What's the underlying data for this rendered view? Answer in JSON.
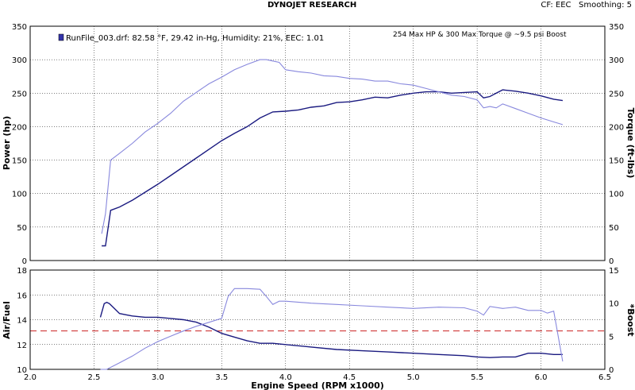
{
  "header": {
    "center_title": "DYNOJET RESEARCH",
    "right_info": "CF: EEC   Smoothing: 5"
  },
  "chart_data": [
    {
      "type": "line",
      "panel": "power-torque",
      "annotation": "254 Max HP & 300 Max Torque @ ~9.5 psi Boost",
      "legend": "RunFile_003.drf: 82.58 °F, 29.42 in-Hg, Humidity: 21%, EEC: 1.01",
      "ylabel": "Power (hp)",
      "y2label": "Torque (ft-lbs)",
      "xlim": [
        2.0,
        6.5
      ],
      "ylim": [
        0,
        350
      ],
      "y2lim": [
        0,
        350
      ],
      "x_ticks": [
        "2.0",
        "2.5",
        "3.0",
        "3.5",
        "4.0",
        "4.5",
        "5.0",
        "5.5",
        "6.0",
        "6.5"
      ],
      "y_ticks": [
        "0",
        "50",
        "100",
        "150",
        "200",
        "250",
        "300",
        "350"
      ],
      "y2_ticks": [
        "0",
        "50",
        "100",
        "150",
        "200",
        "250",
        "300",
        "350"
      ],
      "grid": true,
      "series": [
        {
          "name": "Power",
          "color": "#1a1a80",
          "x": [
            2.56,
            2.59,
            2.63,
            2.7,
            2.8,
            2.9,
            3.0,
            3.1,
            3.2,
            3.3,
            3.4,
            3.5,
            3.6,
            3.7,
            3.8,
            3.9,
            4.0,
            4.1,
            4.2,
            4.3,
            4.4,
            4.5,
            4.6,
            4.7,
            4.8,
            4.9,
            5.0,
            5.1,
            5.2,
            5.3,
            5.4,
            5.5,
            5.55,
            5.6,
            5.65,
            5.7,
            5.8,
            5.9,
            6.0,
            6.1,
            6.17
          ],
          "values": [
            22,
            22,
            75,
            80,
            90,
            102,
            114,
            127,
            140,
            153,
            166,
            179,
            190,
            200,
            213,
            222,
            223,
            225,
            229,
            231,
            236,
            237,
            240,
            244,
            243,
            247,
            250,
            252,
            252,
            250,
            251,
            252,
            243,
            245,
            250,
            255,
            253,
            250,
            246,
            241,
            239
          ]
        },
        {
          "name": "Torque",
          "color": "#8888dd",
          "x": [
            2.56,
            2.59,
            2.63,
            2.7,
            2.8,
            2.9,
            3.0,
            3.1,
            3.2,
            3.3,
            3.4,
            3.5,
            3.6,
            3.7,
            3.8,
            3.85,
            3.9,
            3.95,
            4.0,
            4.1,
            4.2,
            4.3,
            4.4,
            4.5,
            4.6,
            4.7,
            4.8,
            4.9,
            5.0,
            5.1,
            5.2,
            5.3,
            5.4,
            5.5,
            5.55,
            5.6,
            5.65,
            5.7,
            5.8,
            5.9,
            6.0,
            6.1,
            6.17
          ],
          "values": [
            40,
            70,
            150,
            160,
            175,
            192,
            205,
            220,
            238,
            251,
            264,
            274,
            285,
            293,
            300,
            300,
            298,
            296,
            285,
            282,
            280,
            276,
            275,
            272,
            271,
            268,
            268,
            264,
            262,
            257,
            252,
            247,
            245,
            240,
            228,
            230,
            228,
            234,
            227,
            220,
            213,
            207,
            203
          ]
        }
      ]
    },
    {
      "type": "line",
      "panel": "af-boost",
      "ylabel": "Air/Fuel",
      "y2label": "*Boost",
      "xlabel": "Engine Speed (RPM x1000)",
      "xlim": [
        2.0,
        6.5
      ],
      "ylim": [
        10,
        18
      ],
      "y2lim": [
        0,
        15
      ],
      "x_ticks": [
        "2.0",
        "2.5",
        "3.0",
        "3.5",
        "4.0",
        "4.5",
        "5.0",
        "5.5",
        "6.0",
        "6.5"
      ],
      "y_ticks": [
        "10",
        "12",
        "14",
        "16",
        "18"
      ],
      "y2_ticks": [
        "0",
        "5",
        "10",
        "15"
      ],
      "grid": true,
      "reference_line": {
        "y": 13.1,
        "color": "#cc2222"
      },
      "series": [
        {
          "name": "Air/Fuel",
          "color": "#1a1a80",
          "x": [
            2.55,
            2.58,
            2.6,
            2.62,
            2.65,
            2.7,
            2.75,
            2.8,
            2.9,
            3.0,
            3.1,
            3.2,
            3.3,
            3.4,
            3.5,
            3.6,
            3.7,
            3.8,
            3.9,
            4.0,
            4.2,
            4.4,
            4.6,
            4.8,
            5.0,
            5.2,
            5.4,
            5.5,
            5.6,
            5.7,
            5.8,
            5.9,
            6.0,
            6.1,
            6.17
          ],
          "values": [
            14.2,
            15.3,
            15.4,
            15.3,
            15.0,
            14.5,
            14.4,
            14.3,
            14.2,
            14.2,
            14.1,
            14.0,
            13.8,
            13.4,
            12.9,
            12.6,
            12.3,
            12.1,
            12.1,
            12.0,
            11.8,
            11.6,
            11.5,
            11.4,
            11.3,
            11.2,
            11.1,
            11.0,
            10.95,
            11.0,
            11.0,
            11.3,
            11.3,
            11.2,
            11.2
          ]
        },
        {
          "name": "Boost",
          "color": "#8888dd",
          "x": [
            2.55,
            2.6,
            2.7,
            2.8,
            2.9,
            3.0,
            3.1,
            3.2,
            3.3,
            3.4,
            3.5,
            3.55,
            3.6,
            3.7,
            3.8,
            3.85,
            3.9,
            3.95,
            4.0,
            4.2,
            4.4,
            4.6,
            4.8,
            5.0,
            5.2,
            5.4,
            5.5,
            5.55,
            5.6,
            5.7,
            5.8,
            5.9,
            6.0,
            6.05,
            6.1,
            6.17
          ],
          "values": [
            0,
            0,
            1.0,
            2.0,
            3.2,
            4.2,
            5.0,
            5.8,
            6.5,
            7.1,
            7.7,
            11.0,
            12.2,
            12.2,
            12.1,
            11.0,
            9.8,
            10.3,
            10.3,
            10.0,
            9.8,
            9.6,
            9.4,
            9.2,
            9.4,
            9.3,
            8.8,
            8.2,
            9.5,
            9.2,
            9.4,
            8.9,
            8.9,
            8.5,
            8.8,
            1.2
          ]
        }
      ]
    }
  ]
}
